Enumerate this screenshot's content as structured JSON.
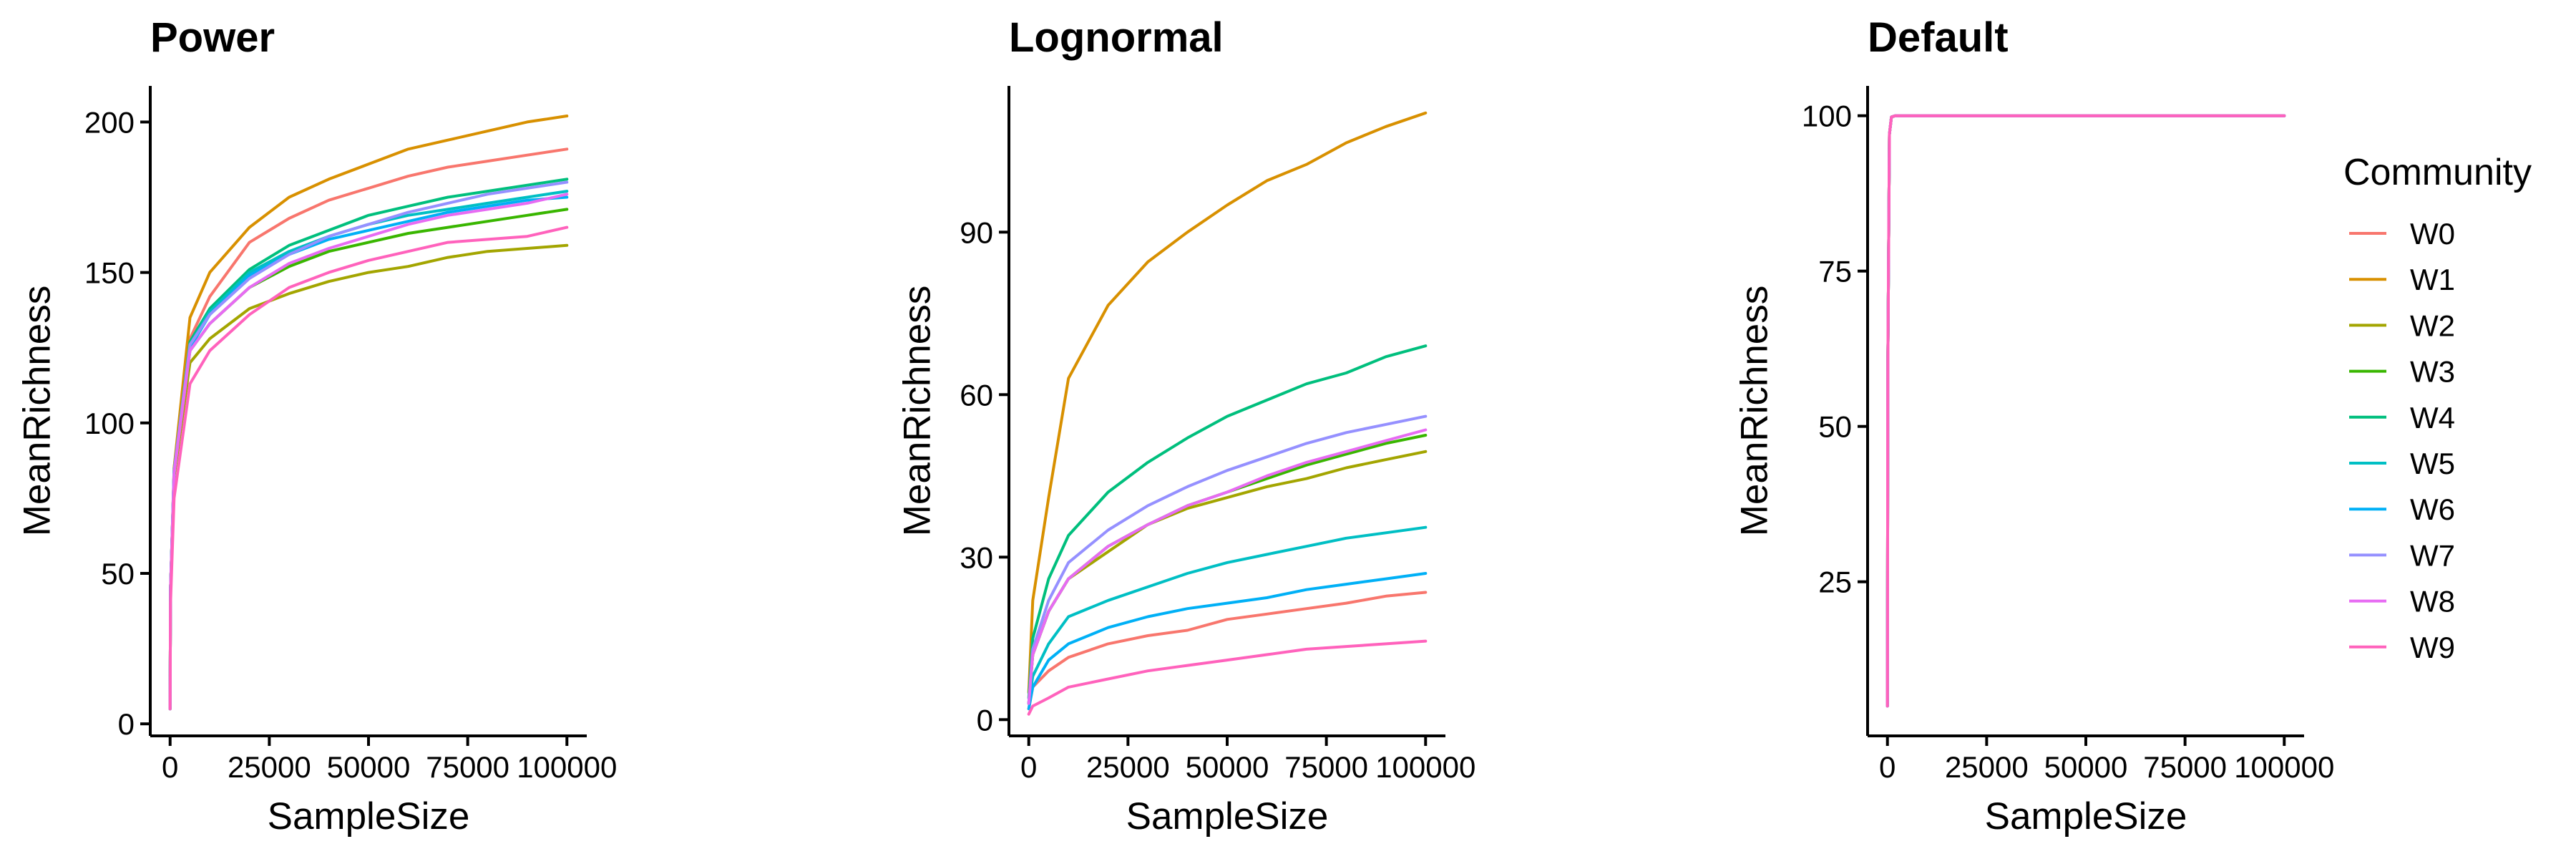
{
  "legend": {
    "title": "Community",
    "entries": [
      {
        "name": "W0",
        "color": "#F8766D"
      },
      {
        "name": "W1",
        "color": "#D89000"
      },
      {
        "name": "W2",
        "color": "#A3A500"
      },
      {
        "name": "W3",
        "color": "#39B600"
      },
      {
        "name": "W4",
        "color": "#00BF7D"
      },
      {
        "name": "W5",
        "color": "#00BFC4"
      },
      {
        "name": "W6",
        "color": "#00B0F6"
      },
      {
        "name": "W7",
        "color": "#9590FF"
      },
      {
        "name": "W8",
        "color": "#E76BF3"
      },
      {
        "name": "W9",
        "color": "#FF62BC"
      }
    ]
  },
  "chart_data": [
    {
      "type": "line",
      "title": "Power",
      "xlabel": "SampleSize",
      "ylabel": "MeanRichness",
      "xlim": [
        -5000,
        105000
      ],
      "ylim": [
        -4,
        212
      ],
      "xticks": [
        0,
        25000,
        50000,
        75000,
        100000
      ],
      "xtick_labels": [
        "0",
        "25000",
        "50000",
        "75000",
        "100000"
      ],
      "yticks": [
        0,
        50,
        100,
        150,
        200
      ],
      "ytick_labels": [
        "0",
        "50",
        "100",
        "150",
        "200"
      ],
      "grid": false,
      "x": [
        1,
        100,
        1000,
        5000,
        10000,
        20000,
        30000,
        40000,
        50000,
        60000,
        70000,
        80000,
        90000,
        100000
      ],
      "series": [
        {
          "name": "W0",
          "values": [
            5,
            45,
            85,
            128,
            142,
            160,
            168,
            174,
            178,
            182,
            185,
            187,
            189,
            191
          ]
        },
        {
          "name": "W1",
          "values": [
            5,
            45,
            85,
            135,
            150,
            165,
            175,
            181,
            186,
            191,
            194,
            197,
            200,
            202
          ]
        },
        {
          "name": "W2",
          "values": [
            5,
            45,
            82,
            120,
            128,
            138,
            143,
            147,
            150,
            152,
            155,
            157,
            158,
            159
          ]
        },
        {
          "name": "W3",
          "values": [
            5,
            45,
            83,
            124,
            133,
            145,
            152,
            157,
            160,
            163,
            165,
            167,
            169,
            171
          ]
        },
        {
          "name": "W4",
          "values": [
            5,
            45,
            84,
            127,
            138,
            151,
            159,
            164,
            169,
            172,
            175,
            177,
            179,
            181
          ]
        },
        {
          "name": "W5",
          "values": [
            5,
            45,
            84,
            126,
            137,
            150,
            157,
            162,
            166,
            169,
            171,
            173,
            175,
            177
          ]
        },
        {
          "name": "W6",
          "values": [
            5,
            45,
            84,
            125,
            136,
            149,
            156,
            161,
            164,
            167,
            170,
            172,
            174,
            175
          ]
        },
        {
          "name": "W7",
          "values": [
            5,
            45,
            84,
            126,
            136,
            148,
            156,
            162,
            166,
            170,
            173,
            176,
            178,
            180
          ]
        },
        {
          "name": "W8",
          "values": [
            5,
            45,
            83,
            124,
            133,
            145,
            153,
            158,
            162,
            166,
            169,
            171,
            173,
            176
          ]
        },
        {
          "name": "W9",
          "values": [
            5,
            40,
            75,
            113,
            124,
            136,
            145,
            150,
            154,
            157,
            160,
            161,
            162,
            165
          ]
        }
      ]
    },
    {
      "type": "line",
      "title": "Lognormal",
      "xlabel": "SampleSize",
      "ylabel": "MeanRichness",
      "xlim": [
        -5000,
        105000
      ],
      "ylim": [
        -3,
        117
      ],
      "xticks": [
        0,
        25000,
        50000,
        75000,
        100000
      ],
      "xtick_labels": [
        "0",
        "25000",
        "50000",
        "75000",
        "100000"
      ],
      "yticks": [
        0,
        30,
        60,
        90
      ],
      "ytick_labels": [
        "0",
        "30",
        "60",
        "90"
      ],
      "grid": false,
      "x": [
        1,
        1000,
        5000,
        10000,
        20000,
        30000,
        40000,
        50000,
        60000,
        70000,
        80000,
        90000,
        100000
      ],
      "series": [
        {
          "name": "W0",
          "values": [
            2,
            6,
            9,
            11.5,
            14,
            15.5,
            16.5,
            18.5,
            19.5,
            20.5,
            21.5,
            22.8,
            23.5
          ]
        },
        {
          "name": "W1",
          "values": [
            5,
            22,
            41,
            63,
            76.5,
            84.5,
            90,
            95,
            99.5,
            102.5,
            106.5,
            109.5,
            112
          ]
        },
        {
          "name": "W2",
          "values": [
            3,
            12,
            20,
            26,
            31,
            36,
            39,
            41,
            43,
            44.5,
            46.5,
            48,
            49.5
          ]
        },
        {
          "name": "W3",
          "values": [
            3,
            12,
            20,
            26,
            32,
            36,
            39.5,
            42,
            44.5,
            47,
            49,
            51,
            52.5
          ]
        },
        {
          "name": "W4",
          "values": [
            4,
            15,
            26,
            34,
            42,
            47.5,
            52,
            56,
            59,
            62,
            64,
            67,
            69
          ]
        },
        {
          "name": "W5",
          "values": [
            3,
            8,
            14,
            19,
            22,
            24.5,
            27,
            29,
            30.5,
            32,
            33.5,
            34.5,
            35.5
          ]
        },
        {
          "name": "W6",
          "values": [
            2,
            6,
            11,
            14,
            17,
            19,
            20.5,
            21.5,
            22.5,
            24,
            25,
            26,
            27
          ]
        },
        {
          "name": "W7",
          "values": [
            3,
            13,
            22,
            29,
            35,
            39.5,
            43,
            46,
            48.5,
            51,
            53,
            54.5,
            56
          ]
        },
        {
          "name": "W8",
          "values": [
            3,
            12,
            20,
            26,
            32,
            36,
            39.5,
            42,
            45,
            47.5,
            49.5,
            51.5,
            53.5
          ]
        },
        {
          "name": "W9",
          "values": [
            1,
            2.5,
            4,
            6,
            7.5,
            9,
            10,
            11,
            12,
            13,
            13.5,
            14,
            14.5
          ]
        }
      ]
    },
    {
      "type": "line",
      "title": "Default",
      "xlabel": "SampleSize",
      "ylabel": "MeanRichness",
      "xlim": [
        -5000,
        105000
      ],
      "ylim": [
        0.2,
        104.8
      ],
      "xticks": [
        0,
        25000,
        50000,
        75000,
        100000
      ],
      "xtick_labels": [
        "0",
        "25000",
        "50000",
        "75000",
        "100000"
      ],
      "yticks": [
        25,
        50,
        75,
        100
      ],
      "ytick_labels": [
        "25",
        "50",
        "75",
        "100"
      ],
      "grid": false,
      "x": [
        1,
        100,
        500,
        1000,
        2000,
        5000,
        100000
      ],
      "series": [
        {
          "name": "W0",
          "values": [
            5,
            60,
            97,
            99.8,
            100,
            100,
            100
          ]
        },
        {
          "name": "W1",
          "values": [
            5,
            60,
            97,
            99.8,
            100,
            100,
            100
          ]
        },
        {
          "name": "W2",
          "values": [
            5,
            60,
            97,
            99.8,
            100,
            100,
            100
          ]
        },
        {
          "name": "W3",
          "values": [
            5,
            60,
            97,
            99.8,
            100,
            100,
            100
          ]
        },
        {
          "name": "W4",
          "values": [
            5,
            60,
            97,
            99.8,
            100,
            100,
            100
          ]
        },
        {
          "name": "W5",
          "values": [
            5,
            60,
            97,
            99.8,
            100,
            100,
            100
          ]
        },
        {
          "name": "W6",
          "values": [
            5,
            60,
            97,
            99.8,
            100,
            100,
            100
          ]
        },
        {
          "name": "W7",
          "values": [
            5,
            60,
            97,
            99.8,
            100,
            100,
            100
          ]
        },
        {
          "name": "W8",
          "values": [
            5,
            60,
            97,
            99.8,
            100,
            100,
            100
          ]
        },
        {
          "name": "W9",
          "values": [
            5,
            60,
            97,
            99.8,
            100,
            100,
            100
          ]
        }
      ]
    }
  ]
}
